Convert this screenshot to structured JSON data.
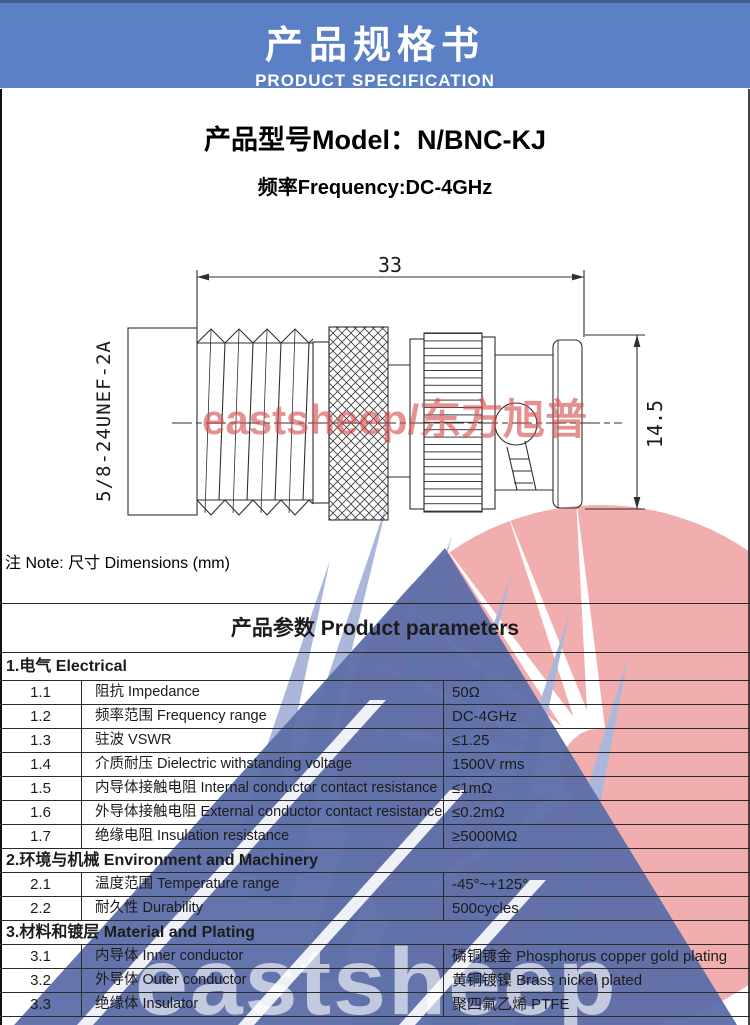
{
  "header": {
    "title_cn": "产品规格书",
    "title_en": "PRODUCT SPECIFICATION"
  },
  "model": {
    "model_line": "产品型号Model：N/BNC-KJ",
    "freq_line": "频率Frequency:DC-4GHz"
  },
  "drawing": {
    "dim_length": "33",
    "dim_height": "14.5",
    "thread_label": "5/8-24UNEF-2A",
    "red_watermark_text": "eastsheep/东方旭普",
    "note": "注 Note:  尺寸 Dimensions (mm)"
  },
  "watermark": {
    "bottom_text": "eastsheep"
  },
  "table": {
    "title": "产品参数 Product parameters",
    "sections": [
      {
        "header": "1.电气 Electrical",
        "rows": [
          {
            "no": "1.1",
            "name": "阻抗 Impedance",
            "value": "50Ω"
          },
          {
            "no": "1.2",
            "name": "频率范围 Frequency range",
            "value": "DC-4GHz"
          },
          {
            "no": "1.3",
            "name": "驻波 VSWR",
            "value": "≤1.25"
          },
          {
            "no": "1.4",
            "name": "介质耐压 Dielectric withstanding voltage",
            "value": "1500V rms"
          },
          {
            "no": "1.5",
            "name": "内导体接触电阻 Internal conductor contact resistance",
            "value": "≤1mΩ"
          },
          {
            "no": "1.6",
            "name": "外导体接触电阻 External conductor contact resistance",
            "value": "≤0.2mΩ"
          },
          {
            "no": "1.7",
            "name": "绝缘电阻  Insulation resistance",
            "value": "≥5000MΩ"
          }
        ]
      },
      {
        "header": "2.环境与机械 Environment and Machinery",
        "rows": [
          {
            "no": "2.1",
            "name": "温度范围 Temperature range",
            "value": "-45°~+125°"
          },
          {
            "no": "2.2",
            "name": "耐久性 Durability",
            "value": "500cycles"
          }
        ]
      },
      {
        "header": "3.材料和镀层 Material  and Plating",
        "rows": [
          {
            "no": "3.1",
            "name": "内导体 Inner conductor",
            "value": "磷铜镀金 Phosphorus copper gold plating"
          },
          {
            "no": "3.2",
            "name": "外导体 Outer conductor",
            "value": "黄铜镀镍 Brass nickel plated"
          },
          {
            "no": "3.3",
            "name": "绝缘体 Insulator",
            "value": "聚四氟乙烯 PTFE"
          }
        ]
      }
    ]
  },
  "colors": {
    "header_blue": "#5b80c5",
    "wing_blue": "#aab7db",
    "triangle_blue": "#5b6ea8",
    "disc_red": "#f2aeae",
    "red_text": "#d54e4e",
    "line_ink": "#2b2b2b"
  }
}
